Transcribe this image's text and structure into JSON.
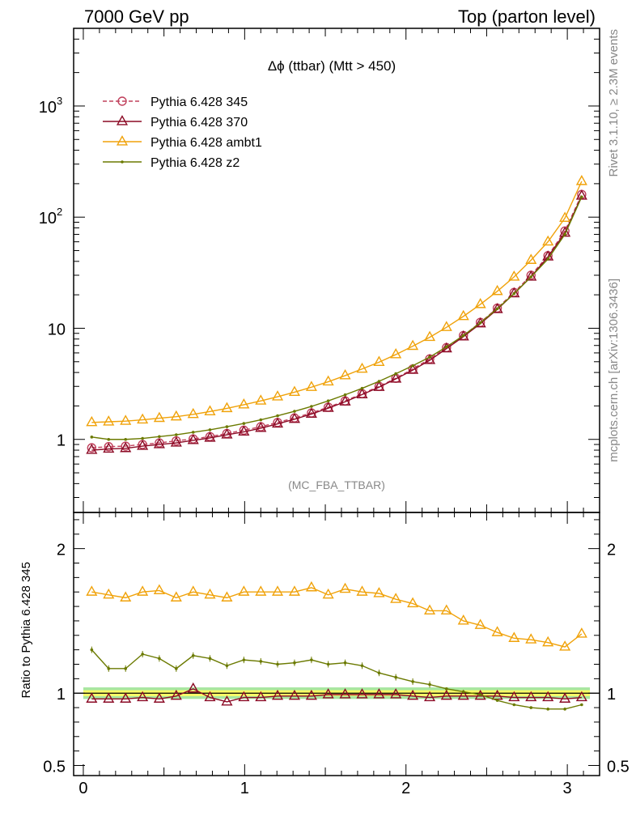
{
  "header": {
    "left": "7000 GeV pp",
    "right": "Top (parton level)"
  },
  "side_labels": {
    "rivet": "Rivet 3.1.10, ≥ 2.3M events",
    "site": "mcplots.cern.ch [arXiv:1306.3436]"
  },
  "chart_data": [
    {
      "type": "line",
      "panel": "main",
      "title": "Δϕ (ttbar) (Mtt > 450)",
      "analysis_tag": "(MC_FBA_TTBAR)",
      "yscale": "log",
      "xlim": [
        -0.06,
        3.2
      ],
      "ylim": [
        0.22,
        5000
      ],
      "yticks": [
        {
          "value": 1,
          "label": "1"
        },
        {
          "value": 10,
          "label": "10"
        },
        {
          "value": 100,
          "label": "10",
          "sup": "2"
        },
        {
          "value": 1000,
          "label": "10",
          "sup": "3"
        }
      ],
      "legend_position": "top-left",
      "x": [
        0.052,
        0.157,
        0.262,
        0.367,
        0.471,
        0.576,
        0.681,
        0.785,
        0.89,
        0.995,
        1.1,
        1.204,
        1.309,
        1.414,
        1.518,
        1.623,
        1.728,
        1.833,
        1.937,
        2.042,
        2.147,
        2.251,
        2.356,
        2.461,
        2.566,
        2.67,
        2.775,
        2.88,
        2.985,
        3.089
      ],
      "series": [
        {
          "name": "Pythia 6.428 345",
          "color": "#c0405c",
          "marker": "open-circle",
          "dash": true,
          "values": [
            0.84,
            0.86,
            0.87,
            0.9,
            0.93,
            0.97,
            1.01,
            1.06,
            1.13,
            1.21,
            1.3,
            1.42,
            1.56,
            1.73,
            1.95,
            2.22,
            2.58,
            3.0,
            3.55,
            4.3,
            5.3,
            6.7,
            8.6,
            11.3,
            15.2,
            21.0,
            30.0,
            45.0,
            75.0,
            160.0
          ]
        },
        {
          "name": "Pythia 6.428 370",
          "color": "#8b0a25",
          "marker": "open-triangle",
          "dash": false,
          "values": [
            0.8,
            0.82,
            0.83,
            0.87,
            0.9,
            0.93,
            0.98,
            1.03,
            1.1,
            1.17,
            1.26,
            1.38,
            1.52,
            1.69,
            1.91,
            2.18,
            2.53,
            2.95,
            3.5,
            4.2,
            5.15,
            6.55,
            8.4,
            11.0,
            14.8,
            20.5,
            29.0,
            44.0,
            72.0,
            155.0
          ]
        },
        {
          "name": "Pythia 6.428 ambt1",
          "color": "#f0a20a",
          "marker": "open-triangle",
          "dash": false,
          "values": [
            1.42,
            1.44,
            1.46,
            1.5,
            1.55,
            1.6,
            1.68,
            1.78,
            1.9,
            2.05,
            2.22,
            2.42,
            2.66,
            2.95,
            3.3,
            3.75,
            4.3,
            4.95,
            5.8,
            6.9,
            8.3,
            10.2,
            12.8,
            16.4,
            21.5,
            29.0,
            41.0,
            60.0,
            98.0,
            210.0
          ]
        },
        {
          "name": "Pythia 6.428 z2",
          "color": "#6b7a00",
          "marker": "dot",
          "dash": false,
          "values": [
            1.05,
            1.0,
            1.0,
            1.02,
            1.06,
            1.1,
            1.16,
            1.22,
            1.3,
            1.39,
            1.5,
            1.63,
            1.79,
            1.98,
            2.22,
            2.52,
            2.88,
            3.33,
            3.9,
            4.6,
            5.5,
            6.8,
            8.6,
            11.2,
            15.0,
            20.5,
            29.0,
            42.0,
            70.0,
            152.0
          ]
        }
      ]
    },
    {
      "type": "line",
      "panel": "ratio",
      "ylabel": "Ratio to Pythia 6.428 345",
      "ylim": [
        0.43,
        2.25
      ],
      "xlim": [
        -0.06,
        3.2
      ],
      "xticks": [
        "0",
        "1",
        "2",
        "3"
      ],
      "yticks": [
        {
          "value": 0.5,
          "label": "0.5"
        },
        {
          "value": 1,
          "label": "1"
        },
        {
          "value": 2,
          "label": "2"
        }
      ],
      "band": {
        "inner": [
          0.98,
          1.02
        ],
        "outer": [
          0.96,
          1.04
        ],
        "inner_color": "#ffff66",
        "outer_color": "#a8e6a0"
      },
      "x": [
        0.052,
        0.157,
        0.262,
        0.367,
        0.471,
        0.576,
        0.681,
        0.785,
        0.89,
        0.995,
        1.1,
        1.204,
        1.309,
        1.414,
        1.518,
        1.623,
        1.728,
        1.833,
        1.937,
        2.042,
        2.147,
        2.251,
        2.356,
        2.461,
        2.566,
        2.67,
        2.775,
        2.88,
        2.985,
        3.089
      ],
      "series": [
        {
          "name": "Pythia 6.428 370",
          "color": "#8b0a25",
          "marker": "open-triangle",
          "values": [
            0.96,
            0.96,
            0.96,
            0.97,
            0.96,
            0.98,
            1.03,
            0.97,
            0.94,
            0.97,
            0.97,
            0.98,
            0.98,
            0.98,
            0.99,
            0.99,
            0.99,
            0.99,
            0.99,
            0.98,
            0.97,
            0.98,
            0.98,
            0.98,
            0.98,
            0.97,
            0.97,
            0.97,
            0.96,
            0.97
          ]
        },
        {
          "name": "Pythia 6.428 ambt1",
          "color": "#f0a20a",
          "marker": "open-triangle",
          "values": [
            1.7,
            1.68,
            1.66,
            1.7,
            1.71,
            1.66,
            1.7,
            1.68,
            1.66,
            1.7,
            1.7,
            1.7,
            1.7,
            1.73,
            1.68,
            1.72,
            1.7,
            1.69,
            1.65,
            1.62,
            1.57,
            1.57,
            1.5,
            1.47,
            1.42,
            1.38,
            1.37,
            1.35,
            1.32,
            1.41
          ]
        },
        {
          "name": "Pythia 6.428 z2",
          "color": "#6b7a00",
          "marker": "dot",
          "values": [
            1.3,
            1.17,
            1.17,
            1.27,
            1.24,
            1.17,
            1.26,
            1.24,
            1.19,
            1.23,
            1.22,
            1.2,
            1.21,
            1.23,
            1.2,
            1.21,
            1.19,
            1.14,
            1.11,
            1.08,
            1.06,
            1.03,
            1.01,
            0.99,
            0.95,
            0.92,
            0.9,
            0.89,
            0.89,
            0.92
          ]
        }
      ]
    }
  ]
}
